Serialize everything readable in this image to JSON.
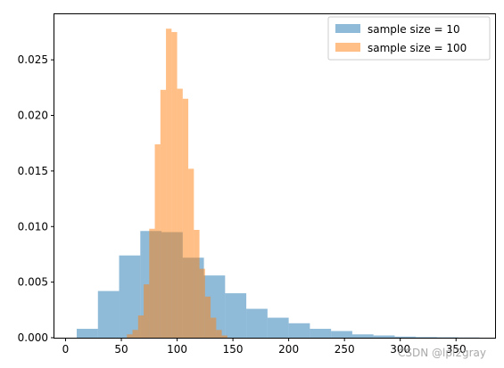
{
  "chart_data": {
    "type": "bar",
    "title": "",
    "xlabel": "",
    "ylabel": "",
    "xlim": [
      -10,
      385
    ],
    "ylim": [
      0,
      0.0291
    ],
    "x_ticks": [
      0,
      50,
      100,
      150,
      200,
      250,
      300,
      350
    ],
    "y_ticks": [
      0.0,
      0.005,
      0.01,
      0.015,
      0.02,
      0.025
    ],
    "y_tick_labels": [
      "0.000",
      "0.005",
      "0.010",
      "0.015",
      "0.020",
      "0.025"
    ],
    "grid": false,
    "legend": "top-right",
    "series": [
      {
        "name": "sample size = 10",
        "color": "#1f77b4",
        "alpha": 0.5,
        "bin_edges": [
          10,
          29,
          48,
          67,
          86,
          105,
          124,
          143,
          162,
          181,
          200,
          219,
          238,
          257,
          276,
          295,
          314,
          333,
          352,
          371
        ],
        "values": [
          0.0008,
          0.0042,
          0.0074,
          0.0096,
          0.0095,
          0.0072,
          0.0056,
          0.004,
          0.0026,
          0.0018,
          0.0013,
          0.0008,
          0.0006,
          0.0003,
          0.0002,
          0.0001,
          6e-05,
          4e-05,
          2e-05
        ]
      },
      {
        "name": "sample size = 100",
        "color": "#ff7f0e",
        "alpha": 0.5,
        "bin_edges": [
          55,
          60,
          65,
          70,
          75,
          80,
          85,
          90,
          95,
          100,
          105,
          110,
          115,
          120,
          125,
          130,
          135,
          140,
          145
        ],
        "values": [
          0.0003,
          0.0007,
          0.002,
          0.0048,
          0.0098,
          0.0174,
          0.0223,
          0.0278,
          0.0275,
          0.0224,
          0.0215,
          0.0152,
          0.0097,
          0.0062,
          0.0037,
          0.0018,
          0.0007,
          0.0002
        ]
      }
    ]
  },
  "watermark": "CSDN @lpl2gray"
}
